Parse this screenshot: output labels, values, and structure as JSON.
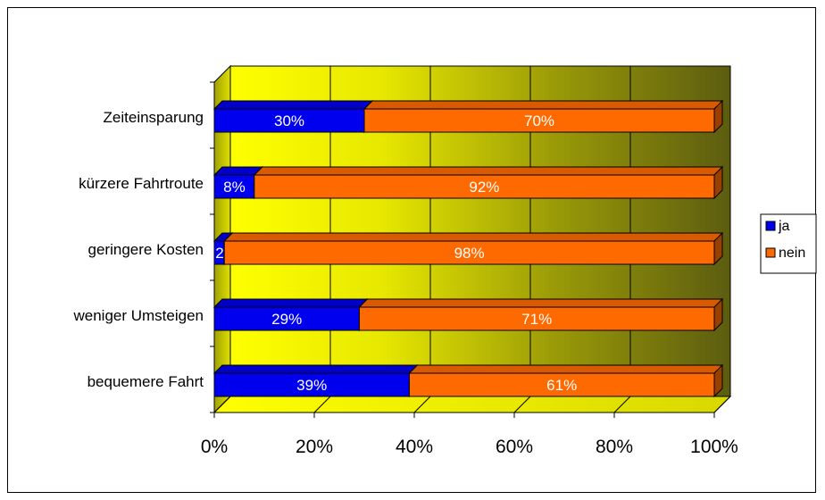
{
  "chart_data": {
    "type": "bar",
    "orientation": "horizontal",
    "stacked": true,
    "stack_mode": "percent",
    "categories": [
      "Zeiteinsparung",
      "kürzere Fahrtroute",
      "geringere Kosten",
      "weniger Umsteigen",
      "bequemere Fahrt"
    ],
    "series": [
      {
        "name": "ja",
        "values": [
          30,
          8,
          2,
          29,
          39
        ],
        "labels": [
          "30%",
          "8%",
          "2%",
          "29%",
          "39%"
        ],
        "color": "#0000ee"
      },
      {
        "name": "nein",
        "values": [
          70,
          92,
          98,
          71,
          61
        ],
        "labels": [
          "70%",
          "92%",
          "98%",
          "71%",
          "61%"
        ],
        "color": "#ff6a00"
      }
    ],
    "xlim": [
      0,
      100
    ],
    "xticks": [
      0,
      20,
      40,
      60,
      80,
      100
    ],
    "xtick_labels": [
      "0%",
      "20%",
      "40%",
      "60%",
      "80%",
      "100%"
    ],
    "title": "",
    "xlabel": "",
    "ylabel": "",
    "grid": true,
    "legend_position": "right",
    "background": "3d-gradient-yellow-olive"
  }
}
